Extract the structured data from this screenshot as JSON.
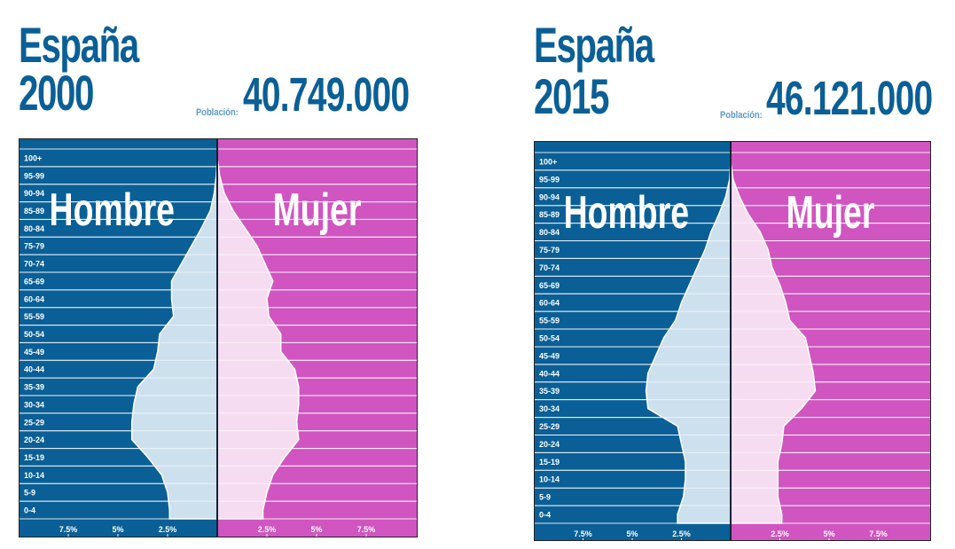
{
  "colors": {
    "male_bg": "#0a5f96",
    "female_bg": "#d055c0",
    "male_fill": "#cde0ee",
    "female_fill": "#f6dcf1",
    "title": "#0a5f96",
    "grid": "#ffffff"
  },
  "chart_data": [
    {
      "type": "bar",
      "title_line1": "España",
      "title_line2": "2000",
      "population_label": "Población:",
      "population_value": "40.749.000",
      "male_label": "Hombre",
      "female_label": "Mujer",
      "categories": [
        "100+",
        "95-99",
        "90-94",
        "85-89",
        "80-84",
        "75-79",
        "70-74",
        "65-69",
        "60-64",
        "55-59",
        "50-54",
        "45-49",
        "40-44",
        "35-39",
        "30-34",
        "25-29",
        "20-24",
        "15-19",
        "10-14",
        "5-9",
        "0-4"
      ],
      "series": [
        {
          "name": "Hombre",
          "values": [
            0.0,
            0.05,
            0.15,
            0.35,
            0.8,
            1.3,
            1.8,
            2.3,
            2.3,
            2.2,
            2.9,
            3.0,
            3.2,
            4.0,
            4.2,
            4.3,
            4.3,
            3.5,
            2.8,
            2.5,
            2.4
          ]
        },
        {
          "name": "Mujer",
          "values": [
            0.0,
            0.12,
            0.35,
            0.8,
            1.4,
            2.0,
            2.4,
            2.8,
            2.5,
            2.6,
            3.2,
            3.2,
            3.9,
            4.1,
            4.1,
            4.0,
            4.1,
            3.4,
            2.8,
            2.5,
            2.3
          ]
        }
      ],
      "xlim": [
        -10,
        10
      ],
      "x_ticks": [
        {
          "value": -7.5,
          "label": "7.5%"
        },
        {
          "value": -5,
          "label": "5%"
        },
        {
          "value": -2.5,
          "label": "2.5%"
        },
        {
          "value": 2.5,
          "label": "2.5%"
        },
        {
          "value": 5,
          "label": "5%"
        },
        {
          "value": 7.5,
          "label": "7.5%"
        }
      ]
    },
    {
      "type": "bar",
      "title_line1": "España",
      "title_line2": "2015",
      "population_label": "Población:",
      "population_value": "46.121.000",
      "male_label": "Hombre",
      "female_label": "Mujer",
      "categories": [
        "100+",
        "95-99",
        "90-94",
        "85-89",
        "80-84",
        "75-79",
        "70-74",
        "65-69",
        "60-64",
        "55-59",
        "50-54",
        "45-49",
        "40-44",
        "35-39",
        "30-34",
        "25-29",
        "20-24",
        "15-19",
        "10-14",
        "5-9",
        "0-4"
      ],
      "series": [
        {
          "name": "Hombre",
          "values": [
            0.0,
            0.05,
            0.25,
            0.6,
            1.0,
            1.3,
            1.7,
            2.1,
            2.5,
            2.8,
            3.4,
            3.8,
            4.2,
            4.3,
            4.2,
            2.7,
            2.5,
            2.3,
            2.3,
            2.4,
            2.7
          ]
        },
        {
          "name": "Mujer",
          "values": [
            0.0,
            0.12,
            0.45,
            0.9,
            1.5,
            1.9,
            2.1,
            2.5,
            2.8,
            3.0,
            3.8,
            4.0,
            4.2,
            4.3,
            3.6,
            2.7,
            2.6,
            2.4,
            2.4,
            2.4,
            2.6
          ]
        }
      ],
      "xlim": [
        -10,
        10
      ],
      "x_ticks": [
        {
          "value": -7.5,
          "label": "7.5%"
        },
        {
          "value": -5,
          "label": "5%"
        },
        {
          "value": -2.5,
          "label": "2.5%"
        },
        {
          "value": 2.5,
          "label": "2.5%"
        },
        {
          "value": 5,
          "label": "5%"
        },
        {
          "value": 7.5,
          "label": "7.5%"
        }
      ]
    }
  ]
}
